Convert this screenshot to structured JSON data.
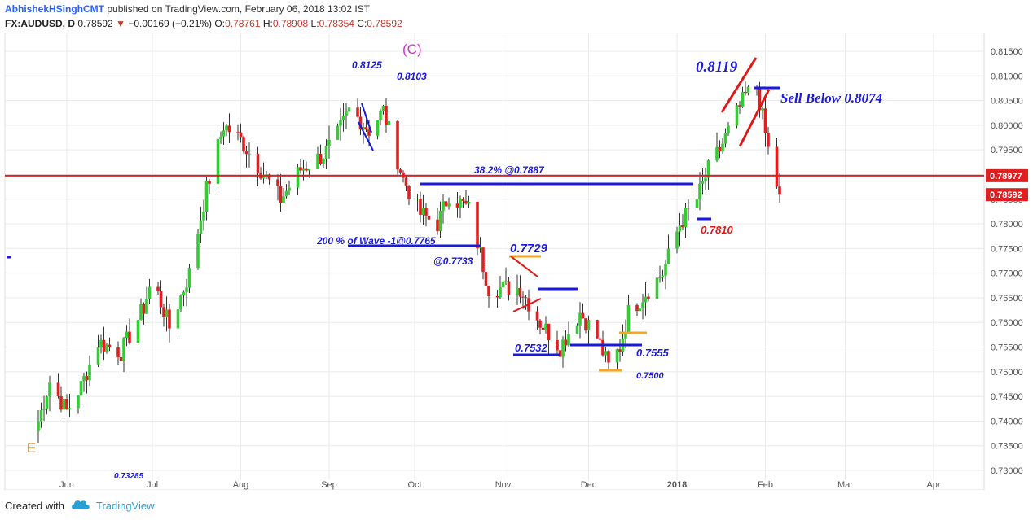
{
  "header": {
    "author": "AbhishekHSinghCMT",
    "published": "published on TradingView.com, February 06, 2018 13:02 IST",
    "symbol": "FX:AUDUSD, D",
    "last": "0.78592",
    "change": "−0.00169 (−0.21%)",
    "o_label": "O:",
    "o_value": "0.78761",
    "h_label": "H:",
    "h_value": "0.78908",
    "l_label": "L:",
    "l_value": "0.78354",
    "c_label": "C:",
    "c_value": "0.78592"
  },
  "footer": {
    "created": "Created with",
    "brand": "TradingView",
    "logo_icon": "tradingview-cloud-icon"
  },
  "colors": {
    "up": "#33cc33",
    "down": "#e02020",
    "annotation_blue": "#1a1adc",
    "annotation_red": "#e01818",
    "orange": "#f5a623",
    "wave": "#cc33cc",
    "wave_e": "#b8650e",
    "axis_text": "#555555",
    "grid": "#eaeaea"
  },
  "chart_data": {
    "type": "candlestick",
    "title": "FX:AUDUSD, D",
    "xlabel": "",
    "ylabel": "",
    "ylim": [
      0.7295,
      0.8155
    ],
    "yticks": [
      "0.81500",
      "0.81000",
      "0.80500",
      "0.80000",
      "0.79500",
      "0.79000",
      "0.78500",
      "0.78000",
      "0.77500",
      "0.77000",
      "0.76500",
      "0.76000",
      "0.75500",
      "0.75000",
      "0.74500",
      "0.74000",
      "0.73500",
      "0.73000"
    ],
    "xticks": [
      "Jun",
      "Jul",
      "Aug",
      "Sep",
      "Oct",
      "Nov",
      "Dec",
      "2018",
      "Feb",
      "Mar",
      "Apr"
    ],
    "grid": true,
    "price_labels": [
      {
        "text": "0.78977",
        "value": 0.78977,
        "color": "#e02020"
      },
      {
        "text": "0.78592",
        "value": 0.78592,
        "color": "#e02020"
      }
    ],
    "horizontal_line": {
      "value": 0.78977,
      "color": "#e02020"
    },
    "series": [
      {
        "name": "AUDUSD",
        "key_points": [
          {
            "date": "2017-05-22",
            "close": 0.74
          },
          {
            "date": "2017-05-26",
            "close": 0.748
          },
          {
            "date": "2017-06-01",
            "close": 0.742
          },
          {
            "date": "2017-06-06",
            "close": 0.747
          },
          {
            "date": "2017-06-12",
            "close": 0.756
          },
          {
            "date": "2017-06-20",
            "close": 0.754
          },
          {
            "date": "2017-06-28",
            "close": 0.763
          },
          {
            "date": "2017-07-01",
            "close": 0.769
          },
          {
            "date": "2017-07-07",
            "close": 0.759
          },
          {
            "date": "2017-07-14",
            "close": 0.77
          },
          {
            "date": "2017-07-20",
            "close": 0.787
          },
          {
            "date": "2017-07-26",
            "close": 0.8
          },
          {
            "date": "2017-08-01",
            "close": 0.797
          },
          {
            "date": "2017-08-08",
            "close": 0.791
          },
          {
            "date": "2017-08-15",
            "close": 0.785
          },
          {
            "date": "2017-08-22",
            "close": 0.791
          },
          {
            "date": "2017-08-30",
            "close": 0.794
          },
          {
            "date": "2017-09-04",
            "close": 0.798
          },
          {
            "date": "2017-09-08",
            "close": 0.803
          },
          {
            "date": "2017-09-12",
            "close": 0.801
          },
          {
            "date": "2017-09-15",
            "close": 0.799
          },
          {
            "date": "2017-09-20",
            "close": 0.803
          },
          {
            "date": "2017-09-27",
            "close": 0.789
          },
          {
            "date": "2017-10-03",
            "close": 0.782
          },
          {
            "date": "2017-10-09",
            "close": 0.78
          },
          {
            "date": "2017-10-13",
            "close": 0.786
          },
          {
            "date": "2017-10-20",
            "close": 0.783
          },
          {
            "date": "2017-10-27",
            "close": 0.767
          },
          {
            "date": "2017-11-02",
            "close": 0.767
          },
          {
            "date": "2017-11-07",
            "close": 0.767
          },
          {
            "date": "2017-11-14",
            "close": 0.76
          },
          {
            "date": "2017-11-21",
            "close": 0.755
          },
          {
            "date": "2017-11-28",
            "close": 0.762
          },
          {
            "date": "2017-12-04",
            "close": 0.757
          },
          {
            "date": "2017-12-08",
            "close": 0.751
          },
          {
            "date": "2017-12-12",
            "close": 0.755
          },
          {
            "date": "2017-12-15",
            "close": 0.762
          },
          {
            "date": "2017-12-21",
            "close": 0.766
          },
          {
            "date": "2017-12-27",
            "close": 0.77
          },
          {
            "date": "2018-01-02",
            "close": 0.78
          },
          {
            "date": "2018-01-08",
            "close": 0.785
          },
          {
            "date": "2018-01-12",
            "close": 0.791
          },
          {
            "date": "2018-01-16",
            "close": 0.795
          },
          {
            "date": "2018-01-20",
            "close": 0.8
          },
          {
            "date": "2018-01-25",
            "close": 0.806
          },
          {
            "date": "2018-01-29",
            "close": 0.808
          },
          {
            "date": "2018-02-02",
            "close": 0.795
          },
          {
            "date": "2018-02-05",
            "close": 0.788
          },
          {
            "date": "2018-02-06",
            "close": 0.78592
          }
        ]
      }
    ],
    "annotations": {
      "wave_c": "(C)",
      "wave_e": "E",
      "peak_8125": "0.8125",
      "peak_8103": "0.8103",
      "peak_8119": "0.8119",
      "sell_below": "Sell Below 0.8074",
      "fib_382": "38.2% @0.7887",
      "wave200": "200 % of Wave -1@0.7765",
      "at_7733": "@0.7733",
      "val_7729": "0.7729",
      "val_7532": "0.7532",
      "val_7555": "0.7555",
      "val_7500": "0.7500",
      "val_7810": "0.7810",
      "left_partial": "0.73285"
    }
  }
}
